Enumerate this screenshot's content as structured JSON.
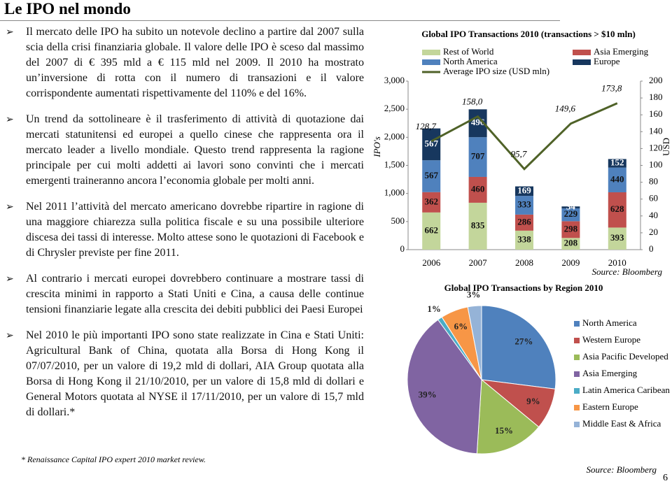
{
  "title": "Le IPO nel mondo",
  "bullets": [
    "Il mercato delle IPO ha subito un notevole declino a partire dal 2007 sulla scia della crisi finanziaria globale. Il valore delle IPO è sceso dal massimo del 2007 di € 395 mld a € 115 mld nel 2009. Il 2010 ha mostrato un’inversione di rotta con il numero di transazioni e il valore corrispondente aumentati rispettivamente del 110% e del 16%.",
    "Un trend da sottolineare è il trasferimento di attività di quotazione dai mercati statunitensi ed europei a quello cinese che rappresenta ora il mercato leader a livello mondiale. Questo trend rappresenta la ragione principale per cui molti addetti ai lavori sono convinti che i mercati emergenti traineranno ancora l’economia globale per molti anni.",
    "Nel 2011 l’attività del mercato americano dovrebbe ripartire in ragione di una maggiore chiarezza sulla politica fiscale e su una possibile ulteriore discesa dei tassi di interesse. Molto attese sono le quotazioni di Facebook e di Chrysler previste per fine 2011.",
    "Al contrario i mercati europei dovrebbero continuare a mostrare tassi di crescita minimi in rapporto a Stati Uniti e Cina, a causa delle continue tensioni finanziarie legate alla crescita dei debiti pubblici dei Paesi Europei",
    "Nel 2010 le più importanti IPO sono state realizzate in Cina e Stati Uniti: Agricultural Bank of China, quotata alla Borsa di Hong Kong il 07/07/2010, per un valore di 19,2 mld di dollari, AIA Group quotata alla Borsa di Hong Kong il 21/10/2010, per un valore di 15,8 mld di dollari e General Motors quotata al NYSE il 17/11/2010, per un valore di 15,7 mld di dollari.*"
  ],
  "footnote": "* Renaissance Capital IPO expert 2010 market review.",
  "page_number": "6",
  "chart_data": [
    {
      "type": "bar",
      "stacked": true,
      "title": "Global IPO Transactions 2010 (transactions > $10 mln)",
      "categories": [
        "2006",
        "2007",
        "2008",
        "2009",
        "2010"
      ],
      "series": [
        {
          "name": "Rest of World",
          "color": "#c3d69b",
          "values": [
            662,
            835,
            338,
            208,
            393
          ]
        },
        {
          "name": "Asia Emerging",
          "color": "#c0504d",
          "values": [
            362,
            460,
            286,
            298,
            628
          ]
        },
        {
          "name": "North America",
          "color": "#4f81bd",
          "values": [
            567,
            707,
            333,
            229,
            440
          ]
        },
        {
          "name": "Europe",
          "color": "#17375e",
          "values": [
            567,
            496,
            169,
            34,
            152
          ]
        },
        {
          "name": "Average IPO size (USD mln)",
          "color": "#4f6228",
          "type": "line",
          "axis": "y2",
          "values": [
            128.7,
            158.0,
            95.7,
            149.6,
            173.8
          ],
          "value_labels": [
            "128,7",
            "158,0",
            "95,7",
            "149,6",
            "173,8"
          ]
        }
      ],
      "ylabel": "IPO's",
      "y2label": "USD",
      "ylim": [
        0,
        3000
      ],
      "yticks": [
        0,
        500,
        {
          "value": 1000,
          "label": "1,000"
        },
        {
          "value": 1500,
          "label": "1,500"
        },
        {
          "value": 2000,
          "label": "2,000"
        },
        {
          "value": 2500,
          "label": "2,500"
        },
        {
          "value": 3000,
          "label": "3,000"
        }
      ],
      "y2lim": [
        0,
        200
      ],
      "y2ticks": [
        0,
        20,
        40,
        60,
        80,
        100,
        120,
        140,
        160,
        180,
        200
      ],
      "source": "Source: Bloomberg"
    },
    {
      "type": "pie",
      "title": "Global IPO Transactions by Region 2010",
      "categories": [
        "North America",
        "Western Europe",
        "Asia Pacific Developed",
        "Asia Emerging",
        "Latin America Caribean",
        "Eastern Europe",
        "Middle East & Africa"
      ],
      "values": [
        27,
        9,
        15,
        39,
        1,
        6,
        3
      ],
      "value_labels": [
        "27%",
        "9%",
        "15%",
        "39%",
        "1%",
        "6%",
        "3%"
      ],
      "colors": [
        "#4f81bd",
        "#c0504d",
        "#9bbb59",
        "#8064a2",
        "#4bacc6",
        "#f79646",
        "#95b3d7"
      ],
      "source": "Source: Bloomberg"
    }
  ]
}
